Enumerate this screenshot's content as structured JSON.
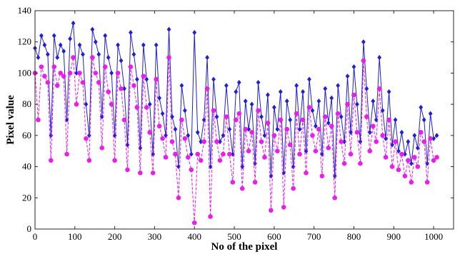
{
  "chart_data": {
    "type": "line",
    "xlabel": "No of the pixel",
    "ylabel": "Pixel value",
    "xlim": [
      0,
      1050
    ],
    "ylim": [
      0,
      140
    ],
    "xticks": [
      0,
      100,
      200,
      300,
      400,
      500,
      600,
      700,
      800,
      900,
      1000
    ],
    "yticks": [
      0,
      20,
      40,
      60,
      80,
      100,
      120,
      140
    ],
    "grid": false,
    "legend": "none",
    "series": [
      {
        "color": "#1f1fd6",
        "marker": "diamond",
        "line_style": "solid",
        "x": [
          0,
          8,
          16,
          24,
          32,
          40,
          48,
          56,
          64,
          72,
          80,
          88,
          96,
          104,
          112,
          120,
          128,
          136,
          144,
          152,
          160,
          168,
          176,
          184,
          192,
          200,
          208,
          216,
          224,
          232,
          240,
          248,
          256,
          264,
          272,
          280,
          288,
          296,
          304,
          312,
          320,
          328,
          336,
          344,
          352,
          360,
          368,
          376,
          384,
          392,
          400,
          408,
          416,
          424,
          432,
          440,
          448,
          456,
          464,
          472,
          480,
          488,
          496,
          504,
          512,
          520,
          528,
          536,
          544,
          552,
          560,
          568,
          576,
          584,
          592,
          600,
          608,
          616,
          624,
          632,
          640,
          648,
          656,
          664,
          672,
          680,
          688,
          696,
          704,
          712,
          720,
          728,
          736,
          744,
          752,
          760,
          768,
          776,
          784,
          792,
          800,
          808,
          816,
          824,
          832,
          840,
          848,
          856,
          864,
          872,
          880,
          888,
          896,
          904,
          912,
          920,
          928,
          936,
          944,
          952,
          960,
          968,
          976,
          984,
          992,
          1000,
          1008
        ],
        "values": [
          116,
          110,
          124,
          118,
          112,
          60,
          124,
          110,
          118,
          114,
          70,
          122,
          132,
          100,
          118,
          112,
          80,
          60,
          128,
          120,
          112,
          72,
          124,
          110,
          100,
          60,
          118,
          108,
          90,
          54,
          126,
          112,
          96,
          52,
          118,
          96,
          80,
          48,
          118,
          84,
          74,
          60,
          128,
          72,
          64,
          40,
          92,
          76,
          60,
          48,
          126,
          62,
          56,
          70,
          110,
          40,
          96,
          72,
          56,
          60,
          92,
          64,
          48,
          88,
          94,
          40,
          82,
          64,
          80,
          42,
          94,
          72,
          60,
          86,
          34,
          78,
          64,
          88,
          36,
          82,
          70,
          40,
          92,
          64,
          88,
          50,
          96,
          76,
          66,
          82,
          48,
          90,
          68,
          84,
          34,
          92,
          72,
          56,
          98,
          62,
          104,
          80,
          56,
          120,
          90,
          62,
          82,
          70,
          110,
          76,
          58,
          88,
          54,
          70,
          50,
          62,
          48,
          56,
          42,
          60,
          52,
          78,
          70,
          42,
          74,
          58,
          60
        ]
      },
      {
        "color": "#e81fe8",
        "marker": "circle",
        "line_style": "dashed",
        "x": [
          0,
          8,
          16,
          24,
          32,
          40,
          48,
          56,
          64,
          72,
          80,
          88,
          96,
          104,
          112,
          120,
          128,
          136,
          144,
          152,
          160,
          168,
          176,
          184,
          192,
          200,
          208,
          216,
          224,
          232,
          240,
          248,
          256,
          264,
          272,
          280,
          288,
          296,
          304,
          312,
          320,
          328,
          336,
          344,
          352,
          360,
          368,
          376,
          384,
          392,
          400,
          408,
          416,
          424,
          432,
          440,
          448,
          456,
          464,
          472,
          480,
          488,
          496,
          504,
          512,
          520,
          528,
          536,
          544,
          552,
          560,
          568,
          576,
          584,
          592,
          600,
          608,
          616,
          624,
          632,
          640,
          648,
          656,
          664,
          672,
          680,
          688,
          696,
          704,
          712,
          720,
          728,
          736,
          744,
          752,
          760,
          768,
          776,
          784,
          792,
          800,
          808,
          816,
          824,
          832,
          840,
          848,
          856,
          864,
          872,
          880,
          888,
          896,
          904,
          912,
          920,
          928,
          936,
          944,
          952,
          960,
          968,
          976,
          984,
          992,
          1000,
          1008
        ],
        "values": [
          100,
          70,
          104,
          98,
          94,
          44,
          104,
          92,
          100,
          98,
          48,
          100,
          110,
          80,
          100,
          94,
          58,
          44,
          110,
          100,
          94,
          52,
          104,
          88,
          80,
          44,
          100,
          90,
          70,
          38,
          104,
          92,
          78,
          36,
          98,
          78,
          62,
          36,
          96,
          66,
          58,
          46,
          110,
          56,
          48,
          20,
          70,
          58,
          46,
          38,
          4,
          48,
          44,
          56,
          90,
          8,
          76,
          56,
          44,
          48,
          72,
          48,
          30,
          70,
          74,
          26,
          64,
          50,
          62,
          30,
          76,
          56,
          46,
          68,
          12,
          60,
          50,
          70,
          14,
          64,
          54,
          26,
          74,
          48,
          70,
          36,
          78,
          60,
          50,
          64,
          34,
          72,
          52,
          66,
          20,
          74,
          56,
          42,
          80,
          48,
          86,
          62,
          42,
          108,
          72,
          50,
          66,
          56,
          90,
          60,
          46,
          70,
          40,
          56,
          38,
          48,
          34,
          44,
          30,
          46,
          40,
          62,
          56,
          30,
          58,
          44,
          46
        ]
      }
    ]
  }
}
